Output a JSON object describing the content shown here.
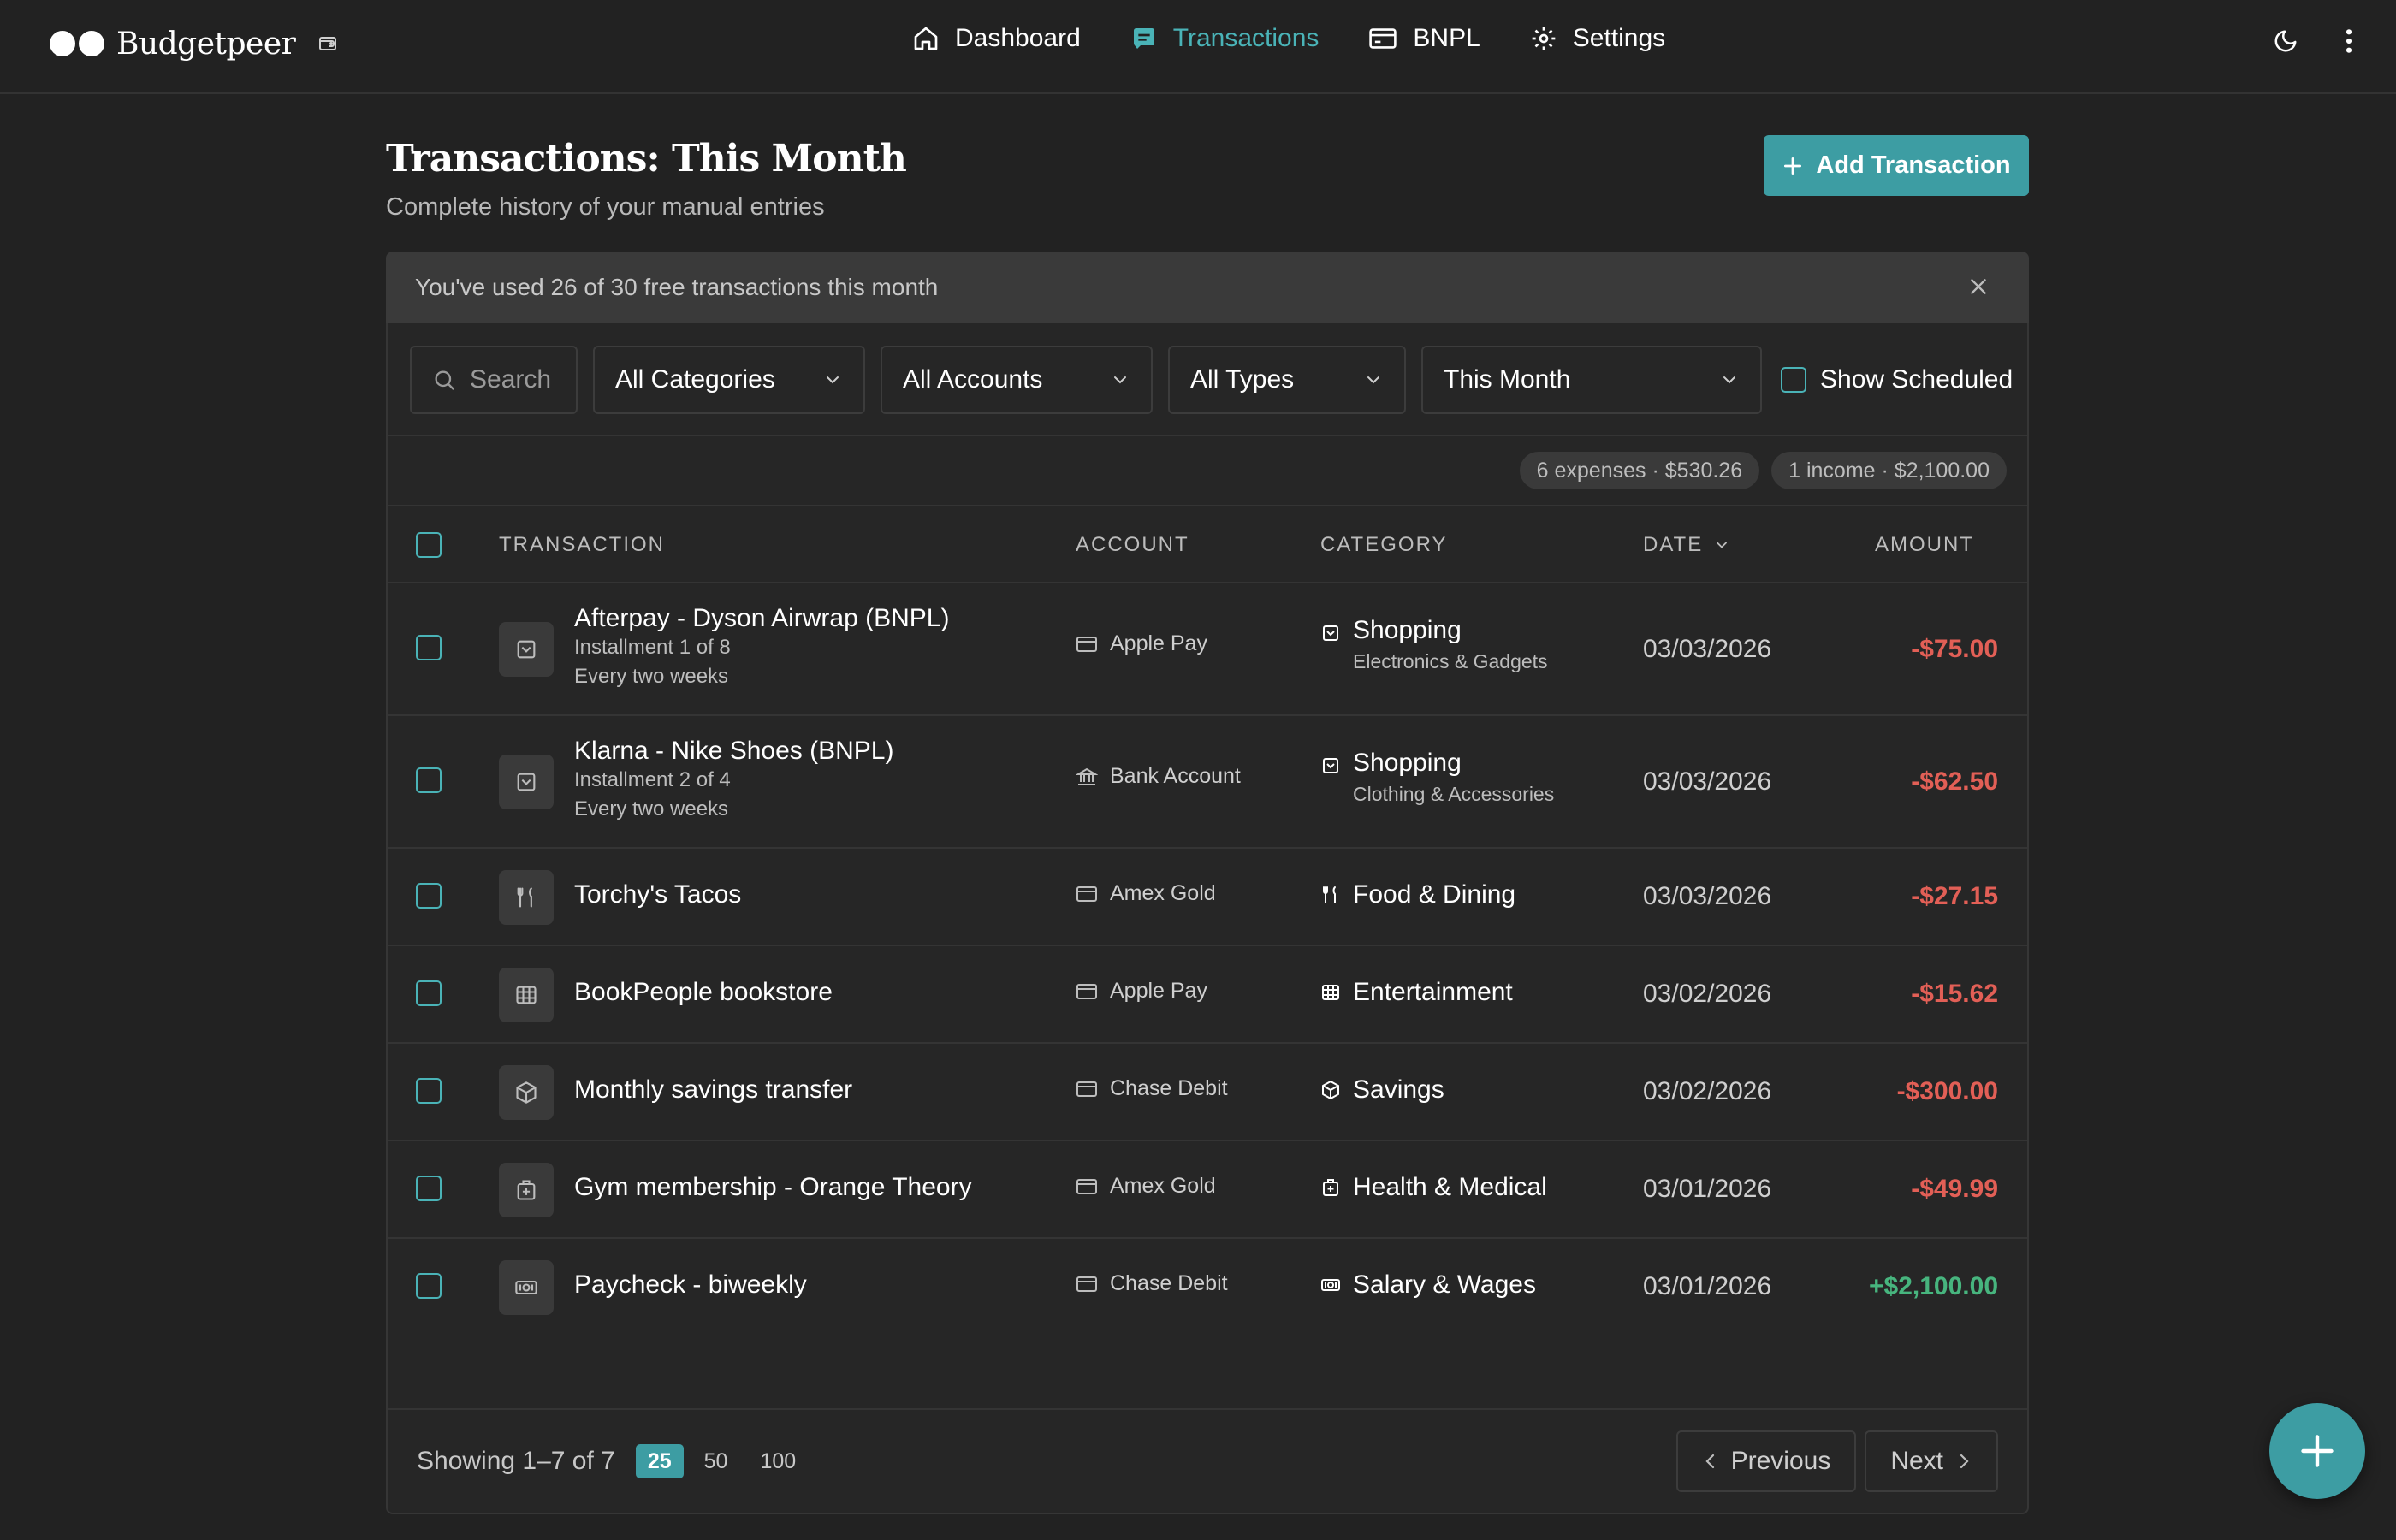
{
  "app": {
    "brand": "Budgetpeer",
    "accent_color": "#3d9da3",
    "expense_color": "#e25f56",
    "income_color": "#47b57e",
    "icons": {
      "brand": "two-dots-logo",
      "wallet": "wallet-icon",
      "theme": "moon-icon",
      "more": "more-vertical-icon"
    }
  },
  "nav": {
    "items": [
      {
        "label": "Dashboard",
        "icon": "home-icon",
        "active": false
      },
      {
        "label": "Transactions",
        "icon": "receipt-icon",
        "active": true
      },
      {
        "label": "BNPL",
        "icon": "card-icon",
        "active": false
      },
      {
        "label": "Settings",
        "icon": "gear-icon",
        "active": false
      }
    ]
  },
  "header": {
    "title": "Transactions: This Month",
    "subtitle": "Complete history of your manual entries",
    "add_button_label": "Add Transaction"
  },
  "banner": {
    "text": "You've used 26 of 30 free transactions this month"
  },
  "filters": {
    "search_placeholder": "Search",
    "category": "All Categories",
    "account": "All Accounts",
    "type": "All Types",
    "period": "This Month",
    "show_scheduled_label": "Show Scheduled"
  },
  "summary": {
    "expenses": "6 expenses · $530.26",
    "income": "1 income · $2,100.00"
  },
  "table": {
    "columns": {
      "transaction": "TRANSACTION",
      "account": "ACCOUNT",
      "category": "CATEGORY",
      "date": "DATE",
      "amount": "AMOUNT"
    },
    "rows": [
      {
        "name": "Afterpay - Dyson Airwrap (BNPL)",
        "sub1": "Installment 1 of 8",
        "sub2": "Every two weeks",
        "icon": "shopping-icon",
        "account": "Apple Pay",
        "account_icon": "card-icon",
        "category": "Shopping",
        "subcategory": "Electronics & Gadgets",
        "category_icon": "shopping-icon",
        "date": "03/03/2026",
        "amount": "-$75.00",
        "type": "expense"
      },
      {
        "name": "Klarna - Nike Shoes (BNPL)",
        "sub1": "Installment 2 of 4",
        "sub2": "Every two weeks",
        "icon": "shopping-icon",
        "account": "Bank Account",
        "account_icon": "bank-icon",
        "category": "Shopping",
        "subcategory": "Clothing & Accessories",
        "category_icon": "shopping-icon",
        "date": "03/03/2026",
        "amount": "-$62.50",
        "type": "expense"
      },
      {
        "name": "Torchy's Tacos",
        "icon": "utensils-icon",
        "account": "Amex Gold",
        "account_icon": "card-icon",
        "category": "Food & Dining",
        "category_icon": "utensils-icon",
        "date": "03/03/2026",
        "amount": "-$27.15",
        "type": "expense"
      },
      {
        "name": "BookPeople bookstore",
        "icon": "film-icon",
        "account": "Apple Pay",
        "account_icon": "card-icon",
        "category": "Entertainment",
        "category_icon": "film-icon",
        "date": "03/02/2026",
        "amount": "-$15.62",
        "type": "expense"
      },
      {
        "name": "Monthly savings transfer",
        "icon": "box-icon",
        "account": "Chase Debit",
        "account_icon": "card-icon",
        "category": "Savings",
        "category_icon": "box-icon",
        "date": "03/02/2026",
        "amount": "-$300.00",
        "type": "expense"
      },
      {
        "name": "Gym membership - Orange Theory",
        "icon": "medical-icon",
        "account": "Amex Gold",
        "account_icon": "card-icon",
        "category": "Health & Medical",
        "category_icon": "medical-icon",
        "date": "03/01/2026",
        "amount": "-$49.99",
        "type": "expense"
      },
      {
        "name": "Paycheck - biweekly",
        "icon": "cash-icon",
        "account": "Chase Debit",
        "account_icon": "card-icon",
        "category": "Salary & Wages",
        "category_icon": "cash-icon",
        "date": "03/01/2026",
        "amount": "+$2,100.00",
        "type": "income"
      }
    ]
  },
  "footer": {
    "showing": "Showing 1–7 of 7",
    "page_sizes": [
      "25",
      "50",
      "100"
    ],
    "active_page_size": "25",
    "previous_label": "Previous",
    "next_label": "Next"
  }
}
